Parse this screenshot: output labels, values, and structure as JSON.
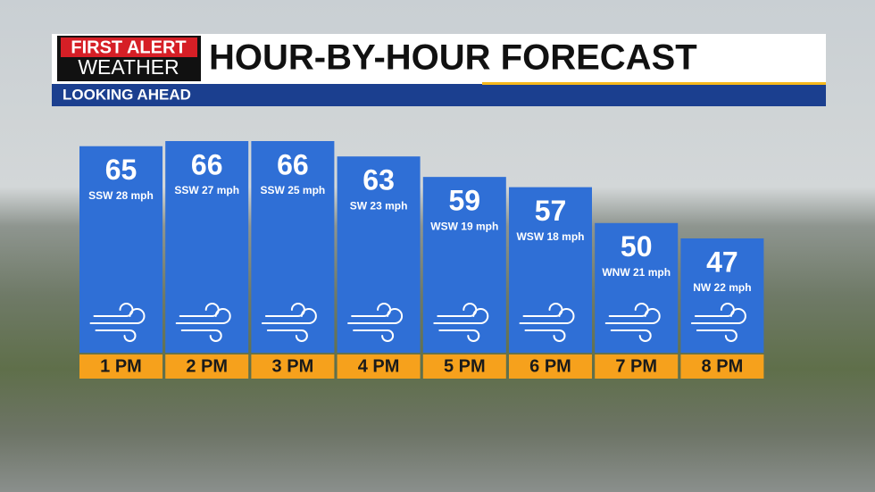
{
  "header": {
    "logo_top": "FIRST ALERT",
    "logo_bottom": "WEATHER",
    "title": "HOUR-BY-HOUR FORECAST",
    "subtitle": "LOOKING AHEAD"
  },
  "chart_data": {
    "type": "bar",
    "categories": [
      "1 PM",
      "2 PM",
      "3 PM",
      "4 PM",
      "5 PM",
      "6 PM",
      "7 PM",
      "8 PM"
    ],
    "values": [
      65,
      66,
      66,
      63,
      59,
      57,
      50,
      47
    ],
    "wind": [
      "SSW 28 mph",
      "SSW 27 mph",
      "SSW 25 mph",
      "SW 23 mph",
      "WSW 19 mph",
      "WSW 18 mph",
      "WNW 21 mph",
      "NW 22 mph"
    ],
    "color": "#2f6fd6",
    "label_color": "#f6a11c"
  }
}
